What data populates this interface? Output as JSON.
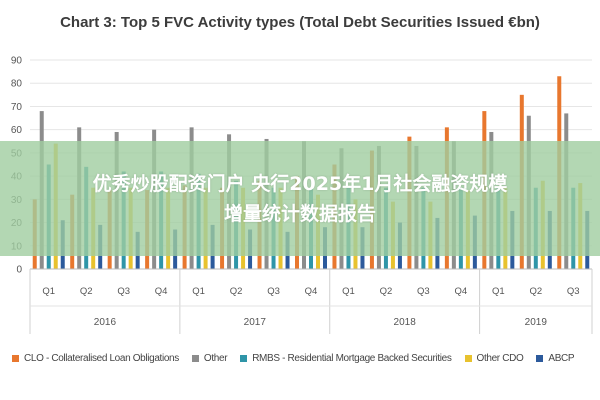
{
  "colors": {
    "clo": "#e8772e",
    "other": "#8c8c8c",
    "rmbs": "#2f95a8",
    "other_cdo": "#e8c22e",
    "abcp": "#2c5a9c",
    "grid": "#e6e6e6",
    "axis_text": "#555555",
    "overlay_bg": "#a0cda0"
  },
  "overlay": {
    "line1": "优秀炒股配资门户 央行2025年1月社会融资规模",
    "line2": "增量统计数据报告"
  },
  "chart_data": {
    "type": "bar",
    "title": "Chart 3: Top 5 FVC Activity types (Total Debt Securities Issued €bn)",
    "xlabel": "",
    "ylabel": "",
    "ylim": [
      0,
      90
    ],
    "yticks": [
      0,
      10,
      20,
      30,
      40,
      50,
      60,
      70,
      80,
      90
    ],
    "grid": true,
    "legend_position": "bottom",
    "categories": [
      "Q1",
      "Q2",
      "Q3",
      "Q4",
      "Q1",
      "Q2",
      "Q3",
      "Q4",
      "Q1",
      "Q2",
      "Q3",
      "Q4",
      "Q1",
      "Q2",
      "Q3"
    ],
    "groups": [
      {
        "label": "2016",
        "count": 4
      },
      {
        "label": "2017",
        "count": 4
      },
      {
        "label": "2018",
        "count": 4
      },
      {
        "label": "2019",
        "count": 3
      }
    ],
    "series": [
      {
        "name": "CLO - Collateralised Loan Obligations",
        "color_key": "clo",
        "values": [
          30,
          32,
          34,
          34,
          36,
          35,
          38,
          40,
          45,
          51,
          57,
          61,
          68,
          75,
          83
        ]
      },
      {
        "name": "Other",
        "color_key": "other",
        "values": [
          68,
          61,
          59,
          60,
          61,
          58,
          56,
          55,
          52,
          53,
          53,
          55,
          59,
          66,
          67
        ]
      },
      {
        "name": "RMBS - Residential Mortgage Backed Securities",
        "color_key": "rmbs",
        "values": [
          45,
          44,
          42,
          42,
          41,
          38,
          35,
          35,
          35,
          35,
          35,
          35,
          35,
          35,
          35
        ]
      },
      {
        "name": "Other CDO",
        "color_key": "other_cdo",
        "values": [
          54,
          35,
          35,
          35,
          35,
          35,
          35,
          32,
          30,
          29,
          29,
          34,
          35,
          38,
          37
        ]
      },
      {
        "name": "ABCP",
        "color_key": "abcp",
        "values": [
          21,
          19,
          16,
          17,
          19,
          17,
          16,
          18,
          18,
          20,
          22,
          23,
          25,
          25,
          25
        ]
      }
    ]
  }
}
